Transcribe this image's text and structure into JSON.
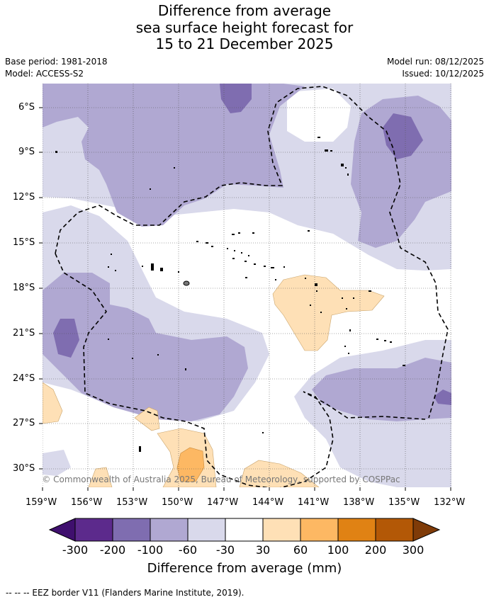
{
  "title": {
    "line1": "Difference from average",
    "line2": "sea surface height forecast for",
    "line3": "15 to 21 December 2025"
  },
  "meta": {
    "base_period": "Base period: 1981-2018",
    "model": "Model: ACCESS-S2",
    "model_run": "Model run: 08/12/2025",
    "issued": "Issued: 10/12/2025"
  },
  "map": {
    "lat_labels": [
      "6°S",
      "9°S",
      "12°S",
      "15°S",
      "18°S",
      "21°S",
      "24°S",
      "27°S",
      "30°S"
    ],
    "lon_labels": [
      "159°W",
      "156°W",
      "153°W",
      "150°W",
      "147°W",
      "144°W",
      "141°W",
      "138°W",
      "135°W",
      "132°W"
    ],
    "copyright": "© Commonwealth of Australia 2025, Bureau of Meteorology, supported by COSPPac"
  },
  "colorbar": {
    "title": "Difference from average (mm)",
    "ticks": [
      "-300",
      "-200",
      "-100",
      "-60",
      "-30",
      "30",
      "60",
      "100",
      "200",
      "300"
    ],
    "colors": [
      "#3f0f6e",
      "#5c2a8c",
      "#7f6db0",
      "#b0a8d2",
      "#d9d9eb",
      "#ffffff",
      "#fee0b6",
      "#fdb863",
      "#e08214",
      "#b35806",
      "#7f3b08"
    ]
  },
  "footer": "--  --  -- EEZ border V11 (Flanders Marine Institute, 2019)."
}
